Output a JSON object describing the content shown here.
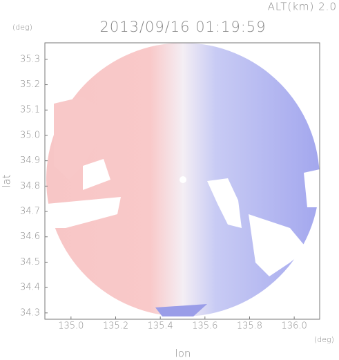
{
  "chart_data": {
    "type": "image",
    "title": "2013/09/16 01:19:59",
    "subtitle": "ALT(km) 2.0",
    "x_label": "lon",
    "y_label": "lat",
    "x_unit": "(deg)",
    "y_unit": "(deg)",
    "xlim": [
      134.883,
      136.114
    ],
    "ylim": [
      34.275,
      35.365
    ],
    "xticks": [
      {
        "value": 135,
        "label": "135.0"
      },
      135.2,
      135.4,
      135.6,
      135.8,
      {
        "value": 136,
        "label": "136.0"
      }
    ],
    "yticks": [
      34.3,
      34.4,
      34.5,
      34.6,
      34.7,
      34.8,
      34.9,
      {
        "value": 35,
        "label": "35.0"
      },
      35.1,
      35.2,
      35.3
    ]
  }
}
